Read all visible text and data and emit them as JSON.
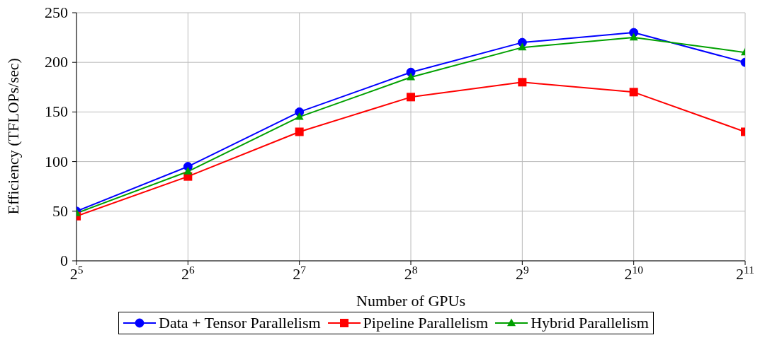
{
  "chart_data": {
    "type": "line",
    "xlabel": "Number of GPUs",
    "ylabel": "Efficiency (TFLOPs/sec)",
    "x": [
      32,
      64,
      128,
      256,
      512,
      1024,
      2048
    ],
    "xlim": [
      32,
      2048
    ],
    "xticks": [
      {
        "value": 32,
        "label": "2$^{5}$"
      },
      {
        "value": 64,
        "label": "2$^{6}$"
      },
      {
        "value": 128,
        "label": "2$^{7}$"
      },
      {
        "value": 256,
        "label": "2$^{8}$"
      },
      {
        "value": 512,
        "label": "2$^{9}$"
      },
      {
        "value": 1024,
        "label": "2$^{10}$"
      },
      {
        "value": 2048,
        "label": "2$^{11}$"
      }
    ],
    "log": "x",
    "ylim": [
      0,
      250
    ],
    "yticks": [
      0,
      50,
      100,
      150,
      200,
      250
    ],
    "grid": true,
    "legend": "bottom",
    "line_style": "solid",
    "series": [
      {
        "name": "Data + Tensor Parallelism",
        "color": "#0000ff",
        "marker": "circle",
        "values": [
          50,
          95,
          150,
          190,
          220,
          230,
          200
        ]
      },
      {
        "name": "Pipeline Parallelism",
        "color": "#ff0000",
        "marker": "square",
        "values": [
          45,
          85,
          130,
          165,
          180,
          170,
          130
        ]
      },
      {
        "name": "Hybrid Parallelism",
        "color": "#00a000",
        "marker": "triangle",
        "values": [
          48,
          90,
          145,
          185,
          215,
          225,
          210
        ]
      }
    ]
  }
}
